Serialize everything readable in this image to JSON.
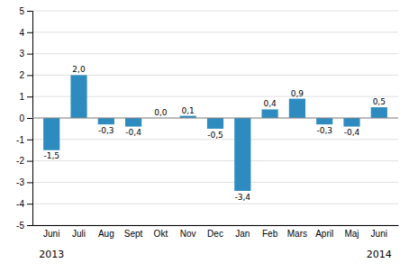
{
  "chart_data": {
    "type": "bar",
    "categories": [
      "Juni",
      "Juli",
      "Aug",
      "Sept",
      "Okt",
      "Nov",
      "Dec",
      "Jan",
      "Feb",
      "Mars",
      "April",
      "Maj",
      "Juni"
    ],
    "values": [
      -1.5,
      2.0,
      -0.3,
      -0.4,
      0.0,
      0.1,
      -0.5,
      -3.4,
      0.4,
      0.9,
      -0.3,
      -0.4,
      0.5
    ],
    "value_labels": [
      "-1,5",
      "2,0",
      "-0,3",
      "-0,4",
      "0,0",
      "0,1",
      "-0,5",
      "-3,4",
      "0,4",
      "0,9",
      "-0,3",
      "-0,4",
      "0,5"
    ],
    "data_labels": true,
    "color": "#2e8bbf",
    "ylim": [
      -5,
      5
    ],
    "yticks": [
      -5,
      -4,
      -3,
      -2,
      -1,
      0,
      1,
      2,
      3,
      4,
      5
    ],
    "grid": true,
    "annotations": [
      {
        "text": "2013",
        "x": 0
      },
      {
        "text": "2014",
        "x": 12
      }
    ]
  }
}
